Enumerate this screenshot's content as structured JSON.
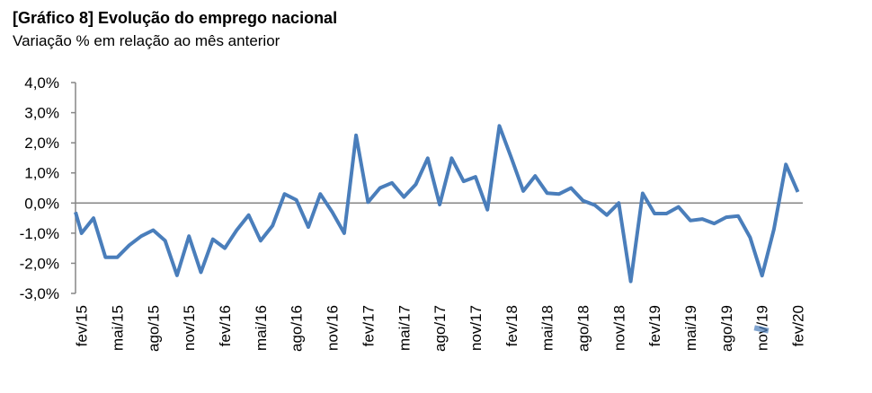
{
  "chart_data": {
    "type": "line",
    "title": "[Gráfico 8] Evolução do emprego nacional",
    "subtitle": "Variação % em relação ao mês anterior",
    "xlabel": "",
    "ylabel": "",
    "ylim": [
      -3,
      4
    ],
    "y_ticks": [
      "4,0%",
      "3,0%",
      "2,0%",
      "1,0%",
      "0,0%",
      "-1,0%",
      "-2,0%",
      "-3,0%"
    ],
    "y_tick_values": [
      4,
      3,
      2,
      1,
      0,
      -1,
      -2,
      -3
    ],
    "x_tick_labels": [
      "fev/15",
      "mai/15",
      "ago/15",
      "nov/15",
      "fev/16",
      "mai/16",
      "ago/16",
      "nov/16",
      "fev/17",
      "mai/17",
      "ago/17",
      "nov/17",
      "fev/18",
      "mai/18",
      "ago/18",
      "nov/18",
      "fev/19",
      "mai/19",
      "ago/19",
      "nov/19",
      "fev/20"
    ],
    "grid": false,
    "zero_line": true,
    "series_color": "#4a7ebb",
    "categories": [
      "fev/15",
      "mar/15",
      "abr/15",
      "mai/15",
      "jun/15",
      "jul/15",
      "ago/15",
      "set/15",
      "out/15",
      "nov/15",
      "dez/15",
      "jan/16",
      "fev/16",
      "mar/16",
      "abr/16",
      "mai/16",
      "jun/16",
      "jul/16",
      "ago/16",
      "set/16",
      "out/16",
      "nov/16",
      "dez/16",
      "jan/17",
      "fev/17",
      "mar/17",
      "abr/17",
      "mai/17",
      "jun/17",
      "jul/17",
      "ago/17",
      "set/17",
      "out/17",
      "nov/17",
      "dez/17",
      "jan/18",
      "fev/18",
      "mar/18",
      "abr/18",
      "mai/18",
      "jun/18",
      "jul/18",
      "ago/18",
      "set/18",
      "out/18",
      "nov/18",
      "dez/18",
      "jan/19",
      "fev/19",
      "mar/19",
      "abr/19",
      "mai/19",
      "jun/19",
      "jul/19",
      "ago/19",
      "set/19",
      "out/19",
      "nov/19",
      "dez/19",
      "jan/20",
      "fev/20"
    ],
    "values": [
      -1.0,
      -0.5,
      -1.8,
      -1.8,
      -1.4,
      -1.1,
      -0.9,
      -1.25,
      -2.4,
      -1.1,
      -2.3,
      -1.2,
      -1.5,
      -0.9,
      -0.4,
      -1.25,
      -0.75,
      0.3,
      0.1,
      -0.8,
      0.3,
      -0.3,
      -1.0,
      2.25,
      0.03,
      0.5,
      0.67,
      0.2,
      0.62,
      1.49,
      -0.05,
      1.49,
      0.72,
      0.87,
      -0.22,
      2.56,
      1.5,
      0.4,
      0.9,
      0.33,
      0.3,
      0.5,
      0.08,
      -0.07,
      -0.4,
      0.0,
      -2.6,
      0.32,
      -0.35,
      -0.35,
      -0.13,
      -0.58,
      -0.53,
      -0.68,
      -0.47,
      -0.43,
      -1.14,
      -2.41,
      -0.87,
      1.28,
      0.37
    ]
  }
}
